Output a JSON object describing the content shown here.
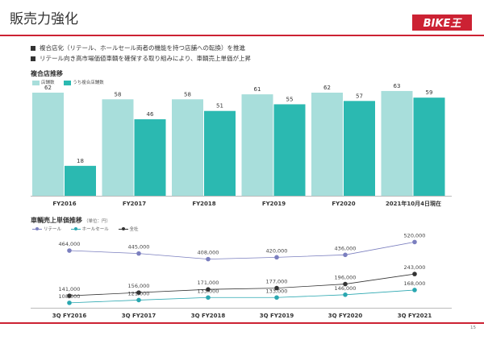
{
  "title": "販売力強化",
  "brand": {
    "logo_text": "BIKE王",
    "color": "#cc2233"
  },
  "bullets": [
    "複合店化（リテール、ホールセール両者の機能を持つ店舗への転換）を推進",
    "リテール向き高市場価値車輌を確保する取り組みにより、車輌売上単価が上昇"
  ],
  "page_number": "15",
  "chart_data": [
    {
      "type": "bar",
      "title": "複合店推移",
      "categories": [
        "FY2016",
        "FY2017",
        "FY2018",
        "FY2019",
        "FY2020",
        "2021年10月4日現在"
      ],
      "series": [
        {
          "name": "店舗数",
          "color": "#a8dedb",
          "values": [
            62,
            58,
            58,
            61,
            62,
            63
          ]
        },
        {
          "name": "うち複合店舗数",
          "color": "#2bb9b1",
          "values": [
            18,
            46,
            51,
            55,
            57,
            59
          ]
        }
      ],
      "ylim": [
        0,
        62
      ]
    },
    {
      "type": "line",
      "title": "車輌売上単価推移",
      "unit": "（単位：円）",
      "categories": [
        "3Q FY2016",
        "3Q FY2017",
        "3Q FY2018",
        "3Q FY2019",
        "3Q FY2020",
        "3Q FY2021"
      ],
      "series": [
        {
          "name": "リテール",
          "color": "#7b7fbf",
          "values": [
            464000,
            445000,
            408000,
            420000,
            436000,
            520000
          ],
          "labels": [
            "464,000",
            "445,000",
            "408,000",
            "420,000",
            "436,000",
            "520,000"
          ]
        },
        {
          "name": "ホールセール",
          "color": "#2aa7b0",
          "values": [
            108000,
            121000,
            133000,
            133000,
            146000,
            168000
          ],
          "labels": [
            "108,000",
            "121,000",
            "133,000",
            "133,000",
            "146,000",
            "168,000"
          ]
        },
        {
          "name": "全社",
          "color": "#333333",
          "values": [
            141000,
            156000,
            171000,
            177000,
            196000,
            243000
          ],
          "labels": [
            "141,000",
            "156,000",
            "171,000",
            "177,000",
            "196,000",
            "243,000"
          ]
        }
      ]
    }
  ]
}
